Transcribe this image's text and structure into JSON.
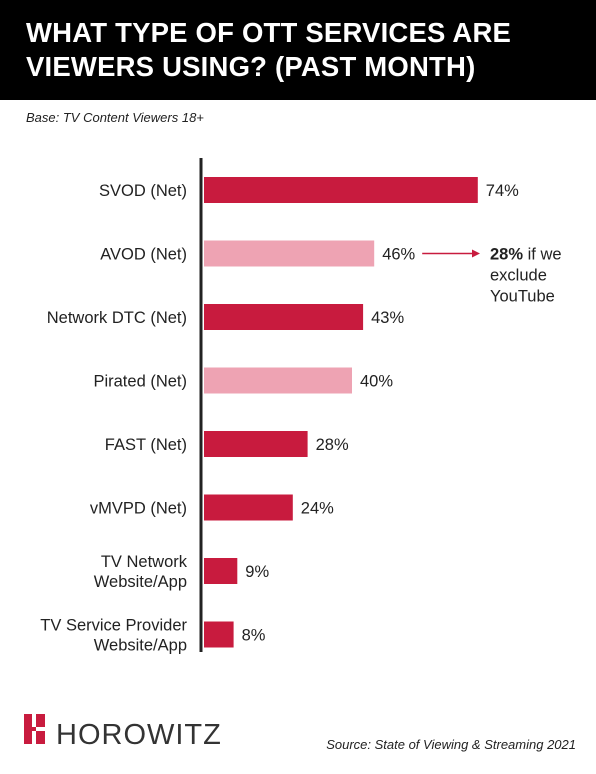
{
  "header": {
    "title": "WHAT TYPE OF OTT SERVICES ARE\nVIEWERS USING? (PAST MONTH)"
  },
  "base_note": "Base: TV Content Viewers 18+",
  "colors": {
    "dark": "#c81b3e",
    "light": "#eea3b3",
    "header_bg": "#000000"
  },
  "chart_data": {
    "type": "bar",
    "orientation": "horizontal",
    "title": "WHAT TYPE OF OTT SERVICES ARE VIEWERS USING? (PAST MONTH)",
    "xlim": [
      0,
      100
    ],
    "grid": false,
    "categories": [
      [
        "SVOD (Net)"
      ],
      [
        "AVOD (Net)"
      ],
      [
        "Network DTC (Net)"
      ],
      [
        "Pirated (Net)"
      ],
      [
        "FAST (Net)"
      ],
      [
        "vMVPD (Net)"
      ],
      [
        "TV Network",
        "Website/App"
      ],
      [
        "TV Service Provider",
        "Website/App"
      ]
    ],
    "values": [
      74,
      46,
      43,
      40,
      28,
      24,
      9,
      8
    ],
    "value_labels": [
      "74%",
      "46%",
      "43%",
      "40%",
      "28%",
      "24%",
      "9%",
      "8%"
    ],
    "bar_colors": [
      "dark",
      "light",
      "dark",
      "light",
      "dark",
      "dark",
      "dark",
      "dark"
    ],
    "annotation": {
      "category_index": 1,
      "value": 28,
      "bold_text": "28%",
      "lines": [
        " if we",
        "exclude",
        "YouTube"
      ]
    }
  },
  "footer": {
    "logo_text": "HOROWITZ",
    "source": "Source: State of Viewing & Streaming 2021"
  }
}
